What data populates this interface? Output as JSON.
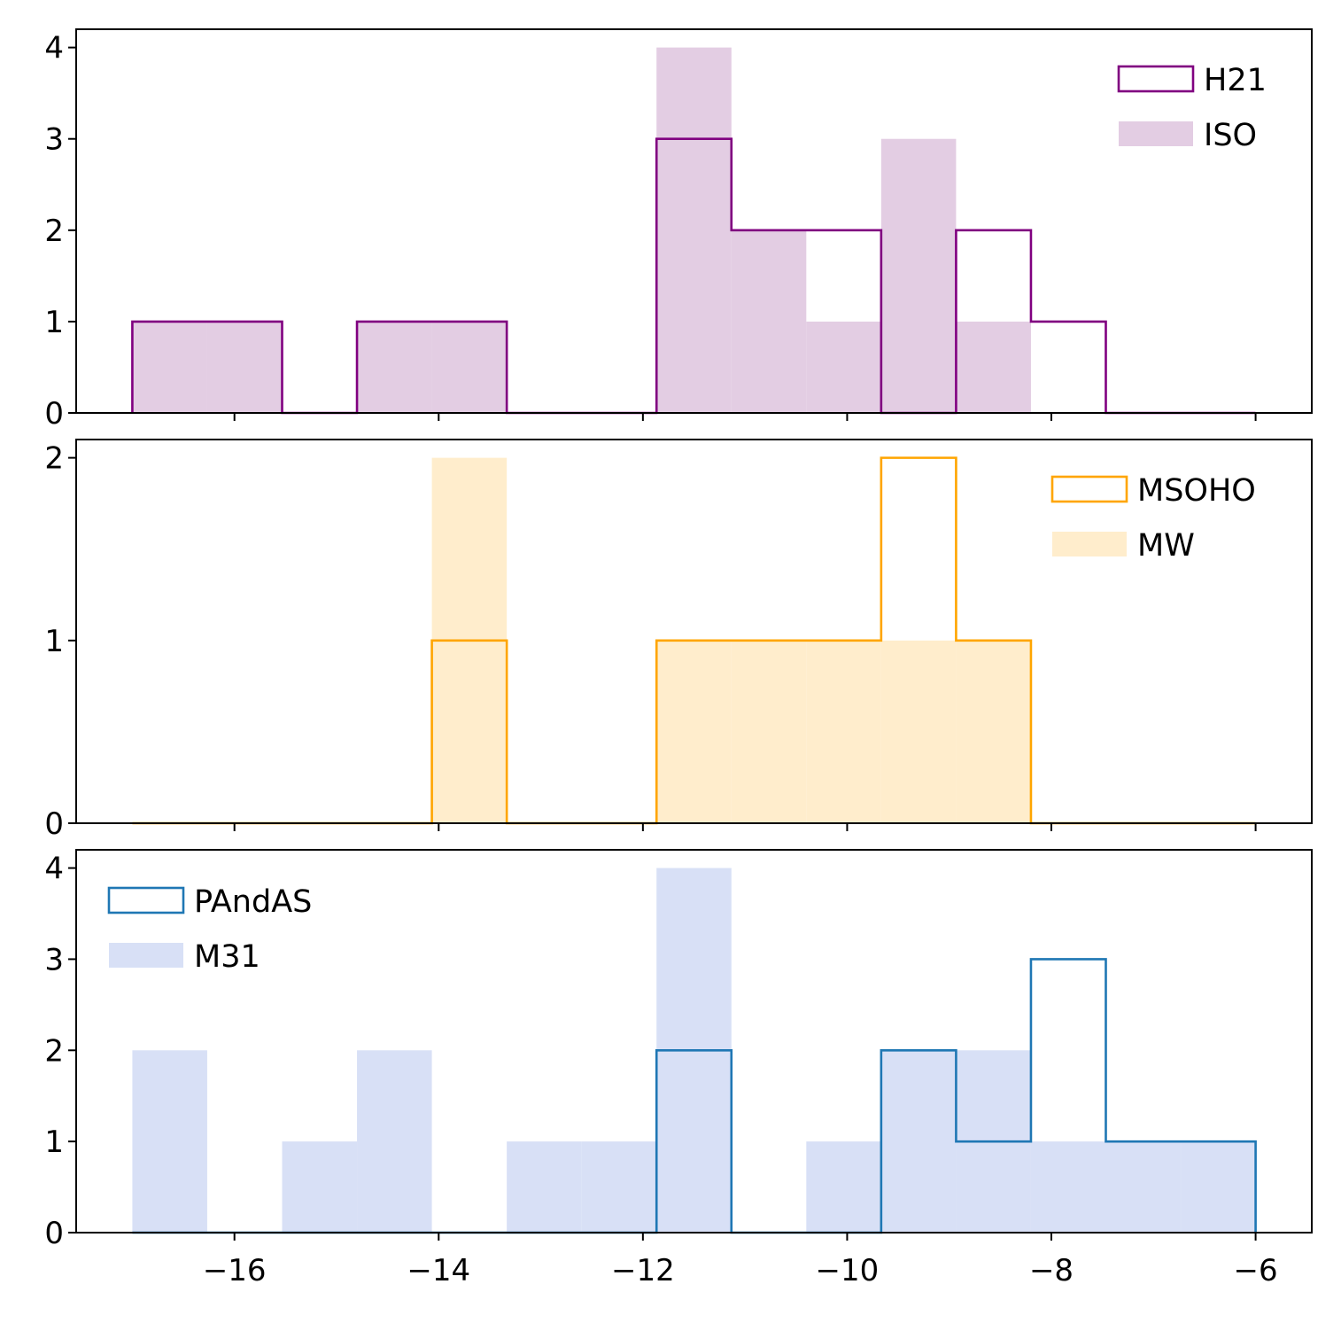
{
  "colors": {
    "axis": "#000000",
    "background": "#ffffff"
  },
  "chart_data": [
    {
      "type": "histogram",
      "panel": "top",
      "bin_edges": [
        -17.0,
        -16.2667,
        -15.5333,
        -14.8,
        -14.0667,
        -13.3333,
        -12.6,
        -11.8667,
        -11.1333,
        -10.4,
        -9.6667,
        -8.9333,
        -8.2,
        -7.4667,
        -6.7333,
        -6.0
      ],
      "xlim": [
        -17.55,
        -5.45
      ],
      "ylim": [
        0,
        4.2
      ],
      "yticks": [
        0,
        1,
        2,
        3,
        4
      ],
      "xticks": [
        -16,
        -14,
        -12,
        -10,
        -8,
        -6
      ],
      "show_xtick_labels": false,
      "legend_position": "top-right",
      "series": [
        {
          "name": "H21",
          "style": "step",
          "color": "#800080",
          "values": [
            1,
            1,
            0,
            1,
            1,
            0,
            0,
            3,
            2,
            2,
            0,
            2,
            1,
            0,
            0
          ]
        },
        {
          "name": "ISO",
          "style": "filled",
          "color": "#e3cde3",
          "values": [
            1,
            1,
            0,
            1,
            1,
            0,
            0,
            4,
            2,
            1,
            3,
            1,
            0,
            0,
            0
          ]
        }
      ]
    },
    {
      "type": "histogram",
      "panel": "middle",
      "bin_edges": [
        -17.0,
        -16.2667,
        -15.5333,
        -14.8,
        -14.0667,
        -13.3333,
        -12.6,
        -11.8667,
        -11.1333,
        -10.4,
        -9.6667,
        -8.9333,
        -8.2,
        -7.4667,
        -6.7333,
        -6.0
      ],
      "xlim": [
        -17.55,
        -5.45
      ],
      "ylim": [
        0,
        2.1
      ],
      "yticks": [
        0,
        1,
        2
      ],
      "xticks": [
        -16,
        -14,
        -12,
        -10,
        -8,
        -6
      ],
      "show_xtick_labels": false,
      "legend_position": "top-right",
      "series": [
        {
          "name": "MSOHO",
          "style": "step",
          "color": "#ffa500",
          "values": [
            0,
            0,
            0,
            0,
            1,
            0,
            0,
            1,
            1,
            1,
            2,
            1,
            0,
            0,
            0
          ]
        },
        {
          "name": "MW",
          "style": "filled",
          "color": "#ffedcc",
          "values": [
            0,
            0,
            0,
            0,
            2,
            0,
            0,
            1,
            1,
            1,
            1,
            1,
            0,
            0,
            0
          ]
        }
      ]
    },
    {
      "type": "histogram",
      "panel": "bottom",
      "bin_edges": [
        -17.0,
        -16.2667,
        -15.5333,
        -14.8,
        -14.0667,
        -13.3333,
        -12.6,
        -11.8667,
        -11.1333,
        -10.4,
        -9.6667,
        -8.9333,
        -8.2,
        -7.4667,
        -6.7333,
        -6.0
      ],
      "xlim": [
        -17.55,
        -5.45
      ],
      "ylim": [
        0,
        4.2
      ],
      "yticks": [
        0,
        1,
        2,
        3,
        4
      ],
      "xticks": [
        -16,
        -14,
        -12,
        -10,
        -8,
        -6
      ],
      "xtick_labels": [
        "−16",
        "−14",
        "−12",
        "−10",
        "−8",
        "−6"
      ],
      "show_xtick_labels": true,
      "legend_position": "top-left",
      "series": [
        {
          "name": "PAndAS",
          "style": "step",
          "color": "#1f77b4",
          "values": [
            0,
            0,
            0,
            0,
            0,
            0,
            0,
            2,
            0,
            0,
            2,
            1,
            3,
            1,
            1
          ]
        },
        {
          "name": "M31",
          "style": "filled",
          "color": "#d8e0f6",
          "values": [
            2,
            0,
            1,
            2,
            0,
            1,
            1,
            4,
            0,
            1,
            2,
            2,
            1,
            1,
            1
          ]
        }
      ]
    }
  ]
}
